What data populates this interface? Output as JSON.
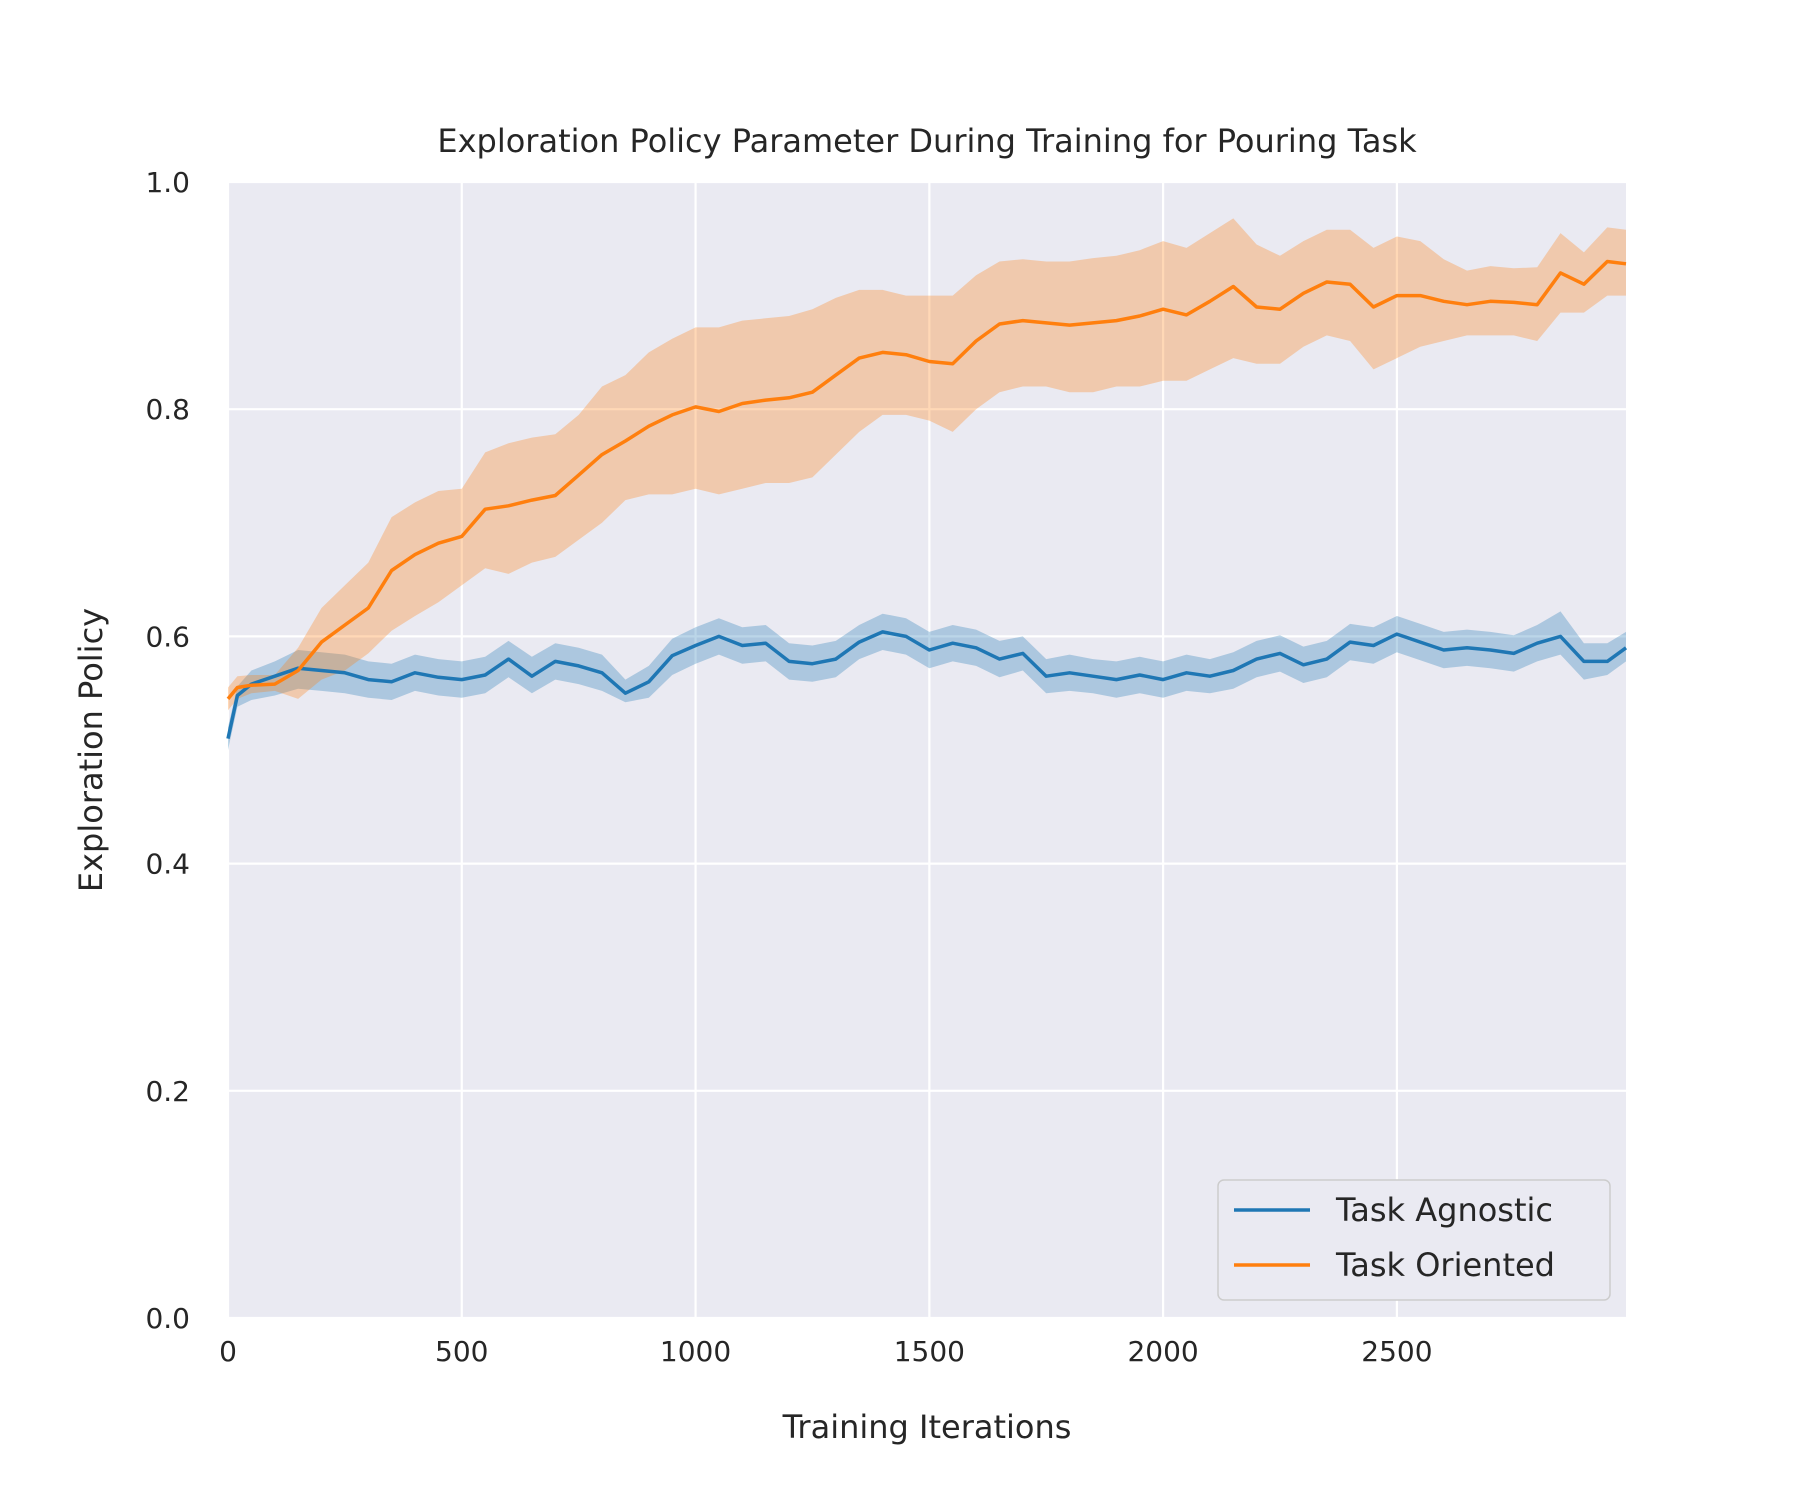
{
  "chart_data": {
    "type": "line",
    "title": "Exploration Policy Parameter During Training for Pouring Task",
    "xlabel": "Training Iterations",
    "ylabel": "Exploration Policy",
    "xlim": [
      0,
      2990
    ],
    "ylim": [
      0.0,
      1.0
    ],
    "grid": true,
    "legend_position": "lower-right",
    "x_ticks": [
      0,
      500,
      1000,
      1500,
      2000,
      2500
    ],
    "x_tick_labels": [
      "0",
      "500",
      "1000",
      "1500",
      "2000",
      "2500"
    ],
    "y_ticks": [
      0.0,
      0.2,
      0.4,
      0.6,
      0.8,
      1.0
    ],
    "y_tick_labels": [
      "0.0",
      "0.2",
      "0.4",
      "0.6",
      "0.8",
      "1.0"
    ],
    "x": [
      0,
      20,
      50,
      100,
      150,
      200,
      250,
      300,
      350,
      400,
      450,
      500,
      550,
      600,
      650,
      700,
      750,
      800,
      850,
      900,
      950,
      1000,
      1050,
      1100,
      1150,
      1200,
      1250,
      1300,
      1350,
      1400,
      1450,
      1500,
      1550,
      1600,
      1650,
      1700,
      1750,
      1800,
      1850,
      1900,
      1950,
      2000,
      2050,
      2100,
      2150,
      2200,
      2250,
      2300,
      2350,
      2400,
      2450,
      2500,
      2550,
      2600,
      2650,
      2700,
      2750,
      2800,
      2850,
      2900,
      2950,
      2990
    ],
    "series": [
      {
        "name": "Task Agnostic",
        "color": "#1f77b4",
        "values": [
          0.51,
          0.548,
          0.558,
          0.565,
          0.572,
          0.57,
          0.568,
          0.562,
          0.56,
          0.568,
          0.564,
          0.562,
          0.566,
          0.58,
          0.565,
          0.578,
          0.574,
          0.568,
          0.55,
          0.56,
          0.583,
          0.592,
          0.6,
          0.592,
          0.594,
          0.578,
          0.576,
          0.58,
          0.595,
          0.604,
          0.6,
          0.588,
          0.594,
          0.59,
          0.58,
          0.585,
          0.565,
          0.568,
          0.565,
          0.562,
          0.566,
          0.562,
          0.568,
          0.565,
          0.57,
          0.58,
          0.585,
          0.575,
          0.58,
          0.595,
          0.592,
          0.602,
          0.595,
          0.588,
          0.59,
          0.588,
          0.585,
          0.594,
          0.6,
          0.578,
          0.578,
          0.59
        ],
        "lower": [
          0.5,
          0.538,
          0.544,
          0.548,
          0.554,
          0.552,
          0.55,
          0.546,
          0.544,
          0.552,
          0.548,
          0.546,
          0.55,
          0.564,
          0.55,
          0.562,
          0.558,
          0.552,
          0.542,
          0.546,
          0.566,
          0.576,
          0.584,
          0.576,
          0.578,
          0.562,
          0.56,
          0.564,
          0.58,
          0.588,
          0.584,
          0.572,
          0.578,
          0.574,
          0.564,
          0.57,
          0.55,
          0.552,
          0.55,
          0.546,
          0.55,
          0.546,
          0.552,
          0.55,
          0.554,
          0.564,
          0.569,
          0.559,
          0.564,
          0.579,
          0.576,
          0.586,
          0.579,
          0.572,
          0.574,
          0.572,
          0.569,
          0.578,
          0.584,
          0.562,
          0.566,
          0.578
        ],
        "upper": [
          0.52,
          0.556,
          0.57,
          0.578,
          0.588,
          0.586,
          0.584,
          0.578,
          0.576,
          0.584,
          0.58,
          0.578,
          0.582,
          0.596,
          0.582,
          0.594,
          0.59,
          0.584,
          0.562,
          0.574,
          0.598,
          0.608,
          0.616,
          0.608,
          0.61,
          0.594,
          0.592,
          0.596,
          0.61,
          0.62,
          0.616,
          0.604,
          0.61,
          0.606,
          0.596,
          0.6,
          0.58,
          0.584,
          0.58,
          0.578,
          0.582,
          0.578,
          0.584,
          0.58,
          0.586,
          0.596,
          0.601,
          0.591,
          0.596,
          0.611,
          0.608,
          0.618,
          0.611,
          0.604,
          0.606,
          0.604,
          0.601,
          0.61,
          0.622,
          0.594,
          0.594,
          0.604
        ]
      },
      {
        "name": "Task Oriented",
        "color": "#ff7f0e",
        "values": [
          0.545,
          0.555,
          0.557,
          0.558,
          0.57,
          0.595,
          0.61,
          0.625,
          0.658,
          0.672,
          0.682,
          0.688,
          0.712,
          0.715,
          0.72,
          0.724,
          0.742,
          0.76,
          0.772,
          0.785,
          0.795,
          0.802,
          0.798,
          0.805,
          0.808,
          0.81,
          0.815,
          0.83,
          0.845,
          0.85,
          0.848,
          0.842,
          0.84,
          0.86,
          0.875,
          0.878,
          0.876,
          0.874,
          0.876,
          0.878,
          0.882,
          0.888,
          0.883,
          0.895,
          0.908,
          0.89,
          0.888,
          0.902,
          0.912,
          0.91,
          0.89,
          0.9,
          0.9,
          0.895,
          0.892,
          0.895,
          0.894,
          0.892,
          0.92,
          0.91,
          0.93,
          0.928
        ],
        "lower": [
          0.535,
          0.545,
          0.55,
          0.552,
          0.545,
          0.562,
          0.57,
          0.585,
          0.605,
          0.618,
          0.63,
          0.645,
          0.66,
          0.655,
          0.665,
          0.67,
          0.685,
          0.7,
          0.72,
          0.725,
          0.725,
          0.73,
          0.725,
          0.73,
          0.735,
          0.735,
          0.74,
          0.76,
          0.78,
          0.795,
          0.795,
          0.79,
          0.78,
          0.8,
          0.815,
          0.82,
          0.82,
          0.815,
          0.815,
          0.82,
          0.82,
          0.825,
          0.825,
          0.835,
          0.845,
          0.84,
          0.84,
          0.855,
          0.865,
          0.86,
          0.835,
          0.845,
          0.855,
          0.86,
          0.865,
          0.865,
          0.865,
          0.86,
          0.885,
          0.885,
          0.9,
          0.9
        ],
        "upper": [
          0.555,
          0.565,
          0.566,
          0.566,
          0.59,
          0.625,
          0.645,
          0.665,
          0.705,
          0.718,
          0.728,
          0.73,
          0.762,
          0.77,
          0.775,
          0.778,
          0.795,
          0.82,
          0.83,
          0.85,
          0.862,
          0.872,
          0.872,
          0.878,
          0.88,
          0.882,
          0.888,
          0.898,
          0.905,
          0.905,
          0.9,
          0.9,
          0.9,
          0.918,
          0.93,
          0.932,
          0.93,
          0.93,
          0.933,
          0.935,
          0.94,
          0.948,
          0.942,
          0.955,
          0.968,
          0.945,
          0.935,
          0.948,
          0.958,
          0.958,
          0.942,
          0.952,
          0.948,
          0.932,
          0.922,
          0.926,
          0.924,
          0.925,
          0.955,
          0.938,
          0.96,
          0.958
        ]
      }
    ]
  }
}
